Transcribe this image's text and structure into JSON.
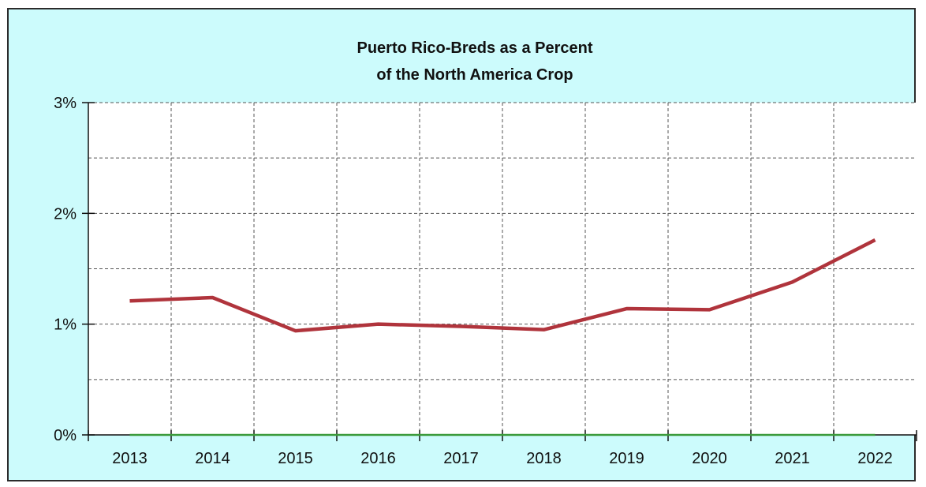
{
  "chart_data": {
    "type": "line",
    "title": "Puerto Rico-Breds as a Percent of the North America Crop",
    "title_lines": [
      "Puerto Rico-Breds as a Percent",
      "of the North America Crop"
    ],
    "xlabel": "",
    "ylabel": "",
    "categories": [
      "2013",
      "2014",
      "2015",
      "2016",
      "2017",
      "2018",
      "2019",
      "2020",
      "2021",
      "2022"
    ],
    "series": [
      {
        "values": [
          1.21,
          1.24,
          0.94,
          1.0,
          0.98,
          0.95,
          1.14,
          1.13,
          1.38,
          1.76
        ],
        "color": "#b0343c"
      },
      {
        "values": [
          0,
          0,
          0,
          0,
          0,
          0,
          0,
          0,
          0,
          0
        ],
        "color": "#3a9a3a"
      }
    ],
    "ylim": [
      0,
      3
    ],
    "y_ticks": [
      {
        "value": 0,
        "label": "0%"
      },
      {
        "value": 1,
        "label": "1%"
      },
      {
        "value": 2,
        "label": "2%"
      },
      {
        "value": 3,
        "label": "3%"
      }
    ],
    "y_minor_gridlines": [
      0.5,
      1.5,
      2.5
    ],
    "grid": true,
    "legend": "none",
    "background_color": "#ccfbfc",
    "plot_background_color": "#ffffff"
  }
}
